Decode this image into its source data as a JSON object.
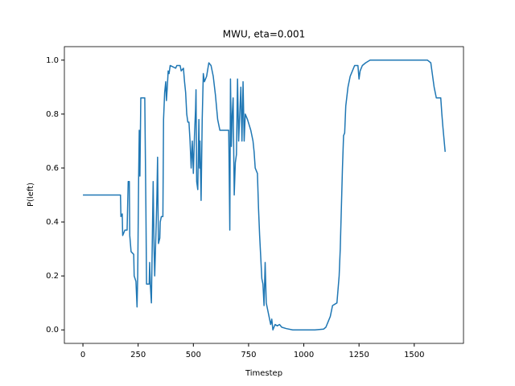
{
  "chart_data": {
    "type": "line",
    "title": "MWU, eta=0.001",
    "xlabel": "Timestep",
    "ylabel": "P(left)",
    "xlim": [
      -84,
      1723
    ],
    "ylim": [
      -0.05,
      1.05
    ],
    "xticks": [
      0,
      250,
      500,
      750,
      1000,
      1250,
      1500
    ],
    "yticks": [
      {
        "value": 0,
        "label": "0.0"
      },
      {
        "value": 0.2,
        "label": "0.2"
      },
      {
        "value": 0.4,
        "label": "0.4"
      },
      {
        "value": 0.6,
        "label": "0.6"
      },
      {
        "value": 0.8,
        "label": "0.8"
      },
      {
        "value": 1,
        "label": "1.0"
      }
    ],
    "grid": false,
    "series": [
      {
        "name": "P(left)",
        "color": "#1f77b4",
        "x": [
          0,
          170,
          172,
          178,
          180,
          185,
          190,
          200,
          205,
          210,
          212,
          218,
          230,
          232,
          240,
          245,
          248,
          252,
          255,
          258,
          262,
          280,
          282,
          285,
          288,
          300,
          302,
          305,
          310,
          318,
          322,
          325,
          332,
          335,
          338,
          340,
          342,
          348,
          350,
          355,
          362,
          365,
          370,
          375,
          378,
          382,
          386,
          390,
          395,
          420,
          425,
          440,
          445,
          455,
          460,
          465,
          470,
          475,
          480,
          485,
          490,
          495,
          500,
          505,
          510,
          512,
          515,
          520,
          525,
          528,
          530,
          535,
          540,
          545,
          550,
          560,
          570,
          580,
          590,
          600,
          610,
          620,
          660,
          662,
          665,
          668,
          672,
          676,
          680,
          685,
          690,
          695,
          700,
          705,
          710,
          715,
          720,
          725,
          730,
          735,
          745,
          760,
          770,
          775,
          780,
          790,
          795,
          800,
          810,
          815,
          820,
          825,
          830,
          840,
          850,
          855,
          860,
          870,
          880,
          890,
          900,
          920,
          950,
          1000,
          1050,
          1090,
          1100,
          1110,
          1120,
          1130,
          1150,
          1160,
          1165,
          1170,
          1175,
          1180,
          1185,
          1190,
          1200,
          1210,
          1220,
          1230,
          1245,
          1250,
          1255,
          1265,
          1280,
          1300,
          1400,
          1500,
          1560,
          1575,
          1580,
          1590,
          1600,
          1620,
          1625,
          1630,
          1640
        ],
        "values": [
          0.5,
          0.5,
          0.42,
          0.43,
          0.35,
          0.36,
          0.37,
          0.37,
          0.55,
          0.55,
          0.35,
          0.29,
          0.28,
          0.2,
          0.18,
          0.085,
          0.2,
          0.55,
          0.74,
          0.57,
          0.86,
          0.86,
          0.7,
          0.46,
          0.17,
          0.17,
          0.25,
          0.17,
          0.1,
          0.55,
          0.3,
          0.2,
          0.4,
          0.5,
          0.64,
          0.45,
          0.32,
          0.34,
          0.4,
          0.42,
          0.42,
          0.78,
          0.88,
          0.92,
          0.85,
          0.9,
          0.96,
          0.95,
          0.98,
          0.97,
          0.98,
          0.98,
          0.96,
          0.97,
          0.92,
          0.88,
          0.8,
          0.77,
          0.77,
          0.7,
          0.6,
          0.7,
          0.58,
          0.72,
          0.82,
          0.89,
          0.55,
          0.52,
          0.78,
          0.6,
          0.7,
          0.48,
          0.78,
          0.95,
          0.92,
          0.94,
          0.99,
          0.98,
          0.94,
          0.87,
          0.78,
          0.74,
          0.74,
          0.6,
          0.37,
          0.93,
          0.68,
          0.8,
          0.86,
          0.5,
          0.62,
          0.65,
          0.93,
          0.7,
          0.8,
          0.9,
          0.7,
          0.92,
          0.7,
          0.8,
          0.78,
          0.74,
          0.7,
          0.66,
          0.6,
          0.58,
          0.45,
          0.35,
          0.19,
          0.17,
          0.09,
          0.25,
          0.1,
          0.06,
          0.02,
          0.04,
          0.0,
          0.02,
          0.015,
          0.02,
          0.01,
          0.005,
          0.0,
          0.0,
          0.0,
          0.003,
          0.01,
          0.03,
          0.05,
          0.09,
          0.1,
          0.2,
          0.3,
          0.45,
          0.6,
          0.72,
          0.73,
          0.83,
          0.9,
          0.94,
          0.96,
          0.98,
          0.98,
          0.93,
          0.96,
          0.98,
          0.99,
          1.0,
          1.0,
          1.0,
          1.0,
          0.99,
          0.96,
          0.9,
          0.86,
          0.86,
          0.8,
          0.75,
          0.66
        ]
      }
    ]
  }
}
